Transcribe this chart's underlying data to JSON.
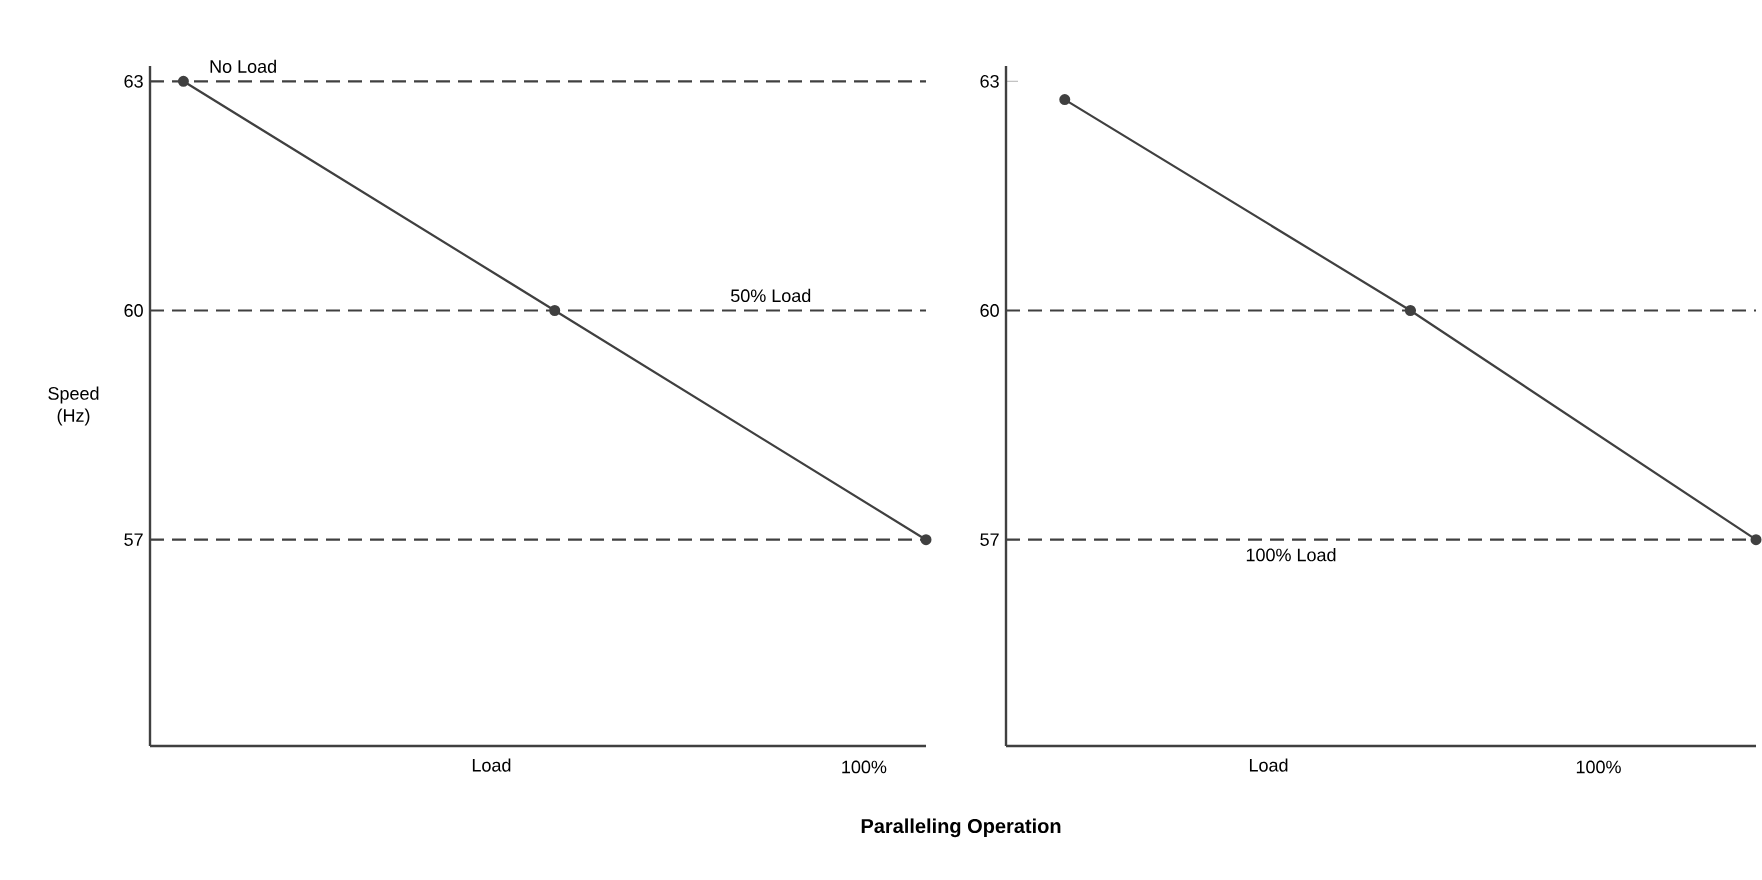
{
  "chart_data": [
    {
      "type": "line",
      "xlabel": "Load",
      "ylabel": "Speed (Hz)",
      "categories": [
        null,
        null,
        null
      ],
      "ylim": [
        54.3,
        63.2
      ],
      "yticks": [
        57,
        60,
        63
      ],
      "marker": "circle",
      "series": [
        {
          "color": "#404040",
          "values": [
            63,
            60,
            57
          ]
        }
      ],
      "ref_lines": [
        {
          "axis": "y",
          "value": 63,
          "label": "No Load",
          "color": "#404040",
          "line_style": "dashed"
        },
        {
          "axis": "y",
          "value": 60,
          "label": "50% Load",
          "color": "#404040",
          "line_style": "dashed"
        },
        {
          "axis": "y",
          "value": 57,
          "color": "#404040",
          "line_style": "dashed"
        }
      ],
      "annotations": [
        "100%"
      ]
    },
    {
      "type": "line",
      "xlabel": "Load",
      "categories": [
        null,
        null,
        null
      ],
      "ylim": [
        54.3,
        63.2
      ],
      "yticks": [
        57,
        60,
        63
      ],
      "marker": "circle",
      "series": [
        {
          "color": "#404040",
          "values": [
            62.76,
            60,
            57
          ]
        }
      ],
      "ref_lines": [
        {
          "axis": "y",
          "value": 60,
          "color": "#404040",
          "line_style": "dashed"
        },
        {
          "axis": "y",
          "value": 57,
          "label": "100% Load",
          "color": "#404040",
          "line_style": "dashed"
        }
      ],
      "annotations": [
        "100%",
        "Paralleling Operation"
      ]
    }
  ]
}
